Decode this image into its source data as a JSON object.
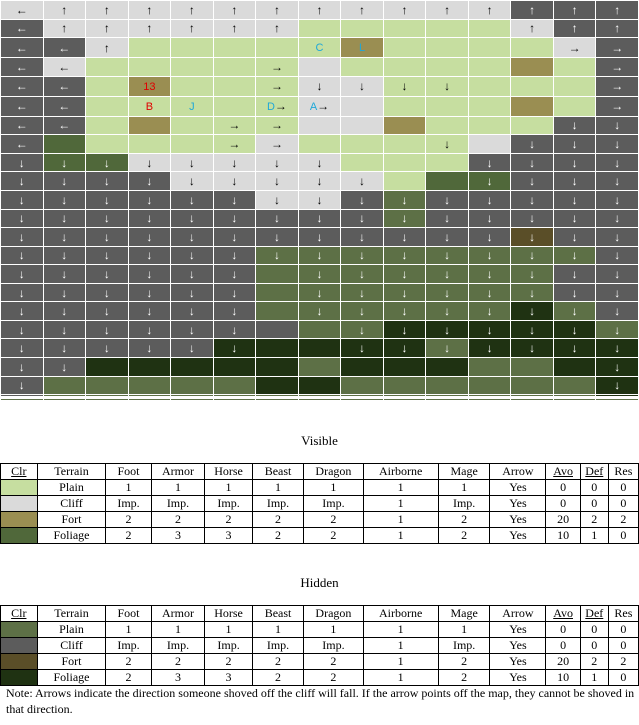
{
  "palette": {
    "P": "#c6dea0",
    "C": "#dadada",
    "F": "#9a8e52",
    "G": "#50683a",
    "g": "#5d7046",
    "c": "#5c5c5c",
    "f": "#5a4e28",
    "d": "#1f3212"
  },
  "map": {
    "rows": [
      "CCCCCCCCCCCCccc",
      "cCCCCCCPPPPPCcc",
      "ccCPPPPPFPPPPCc",
      "cCPPPPPCPPPPFPc",
      "ccPFPPPCCPPPPPc",
      "ccPPPPPCCPPPFPc",
      "ccPFPPPCCFPPPcc",
      "cGPPPPCPPPPCccc",
      "cGGCCCCCPPPcccc",
      "ccccCCCCCPGGccc",
      "ccccccCCcgccccc",
      "cccccccccgccccc",
      "ccccccccccccfcc",
      "ccccccggggggggc",
      "ccccccgggggggcc",
      "ccccccgggggggcc",
      "ccccccggggggdgc",
      "cccccccggdddddg",
      "cccccdddddgdddd",
      "ccdddddgdddggdd",
      "cgggggddggggggd",
      "cgggggggggggggd",
      "ggggggggggggdgg",
      "gdgggggdggggggg",
      "ggggggggggggggg"
    ],
    "arrows": [
      [
        "←",
        "↑",
        "↑",
        "↑",
        "↑",
        "↑",
        "↑",
        "↑",
        "↑",
        "↑",
        "↑",
        "↑",
        "↑",
        "↑",
        "↑"
      ],
      [
        "←",
        "↑",
        "↑",
        "↑",
        "↑",
        "↑",
        "↑",
        "",
        "",
        "",
        "",
        "",
        "↑",
        "↑",
        "↑"
      ],
      [
        "←",
        "←",
        "↑",
        "",
        "",
        "",
        "",
        "",
        "",
        "",
        "",
        "",
        "",
        "→",
        "→"
      ],
      [
        "←",
        "←",
        "",
        "",
        "",
        "",
        "→",
        "",
        "",
        "",
        "",
        "",
        "",
        "",
        "→"
      ],
      [
        "←",
        "←",
        "",
        "",
        "",
        "",
        "→",
        "↓",
        "↓",
        "↓",
        "↓",
        "",
        "",
        "",
        "→"
      ],
      [
        "←",
        "←",
        "",
        "",
        "",
        "",
        "→",
        "→",
        "",
        "",
        "",
        "",
        "",
        "",
        "→"
      ],
      [
        "←",
        "←",
        "",
        "",
        "",
        "→",
        "→",
        "",
        "",
        "",
        "",
        "",
        "",
        "↓",
        "↓"
      ],
      [
        "←",
        "",
        "",
        "",
        "",
        "→",
        "→",
        "",
        "",
        "",
        "↓",
        "",
        "↓",
        "↓",
        "↓"
      ],
      [
        "↓",
        "↓",
        "↓",
        "↓",
        "↓",
        "↓",
        "↓",
        "↓",
        "",
        "",
        "",
        "↓",
        "↓",
        "↓",
        "↓"
      ],
      [
        "↓",
        "↓",
        "↓",
        "↓",
        "↓",
        "↓",
        "↓",
        "↓",
        "↓",
        "",
        "",
        "↓",
        "↓",
        "↓",
        "↓"
      ],
      [
        "↓",
        "↓",
        "↓",
        "↓",
        "↓",
        "↓",
        "↓",
        "↓",
        "↓",
        "↓",
        "↓",
        "↓",
        "↓",
        "↓",
        "↓"
      ],
      [
        "↓",
        "↓",
        "↓",
        "↓",
        "↓",
        "↓",
        "↓",
        "↓",
        "↓",
        "↓",
        "↓",
        "↓",
        "↓",
        "↓",
        "↓"
      ],
      [
        "↓",
        "↓",
        "↓",
        "↓",
        "↓",
        "↓",
        "↓",
        "↓",
        "↓",
        "↓",
        "↓",
        "↓",
        "↓",
        "↓",
        "↓"
      ],
      [
        "↓",
        "↓",
        "↓",
        "↓",
        "↓",
        "↓",
        "↓",
        "↓",
        "↓",
        "↓",
        "↓",
        "↓",
        "↓",
        "↓",
        "↓"
      ],
      [
        "↓",
        "↓",
        "↓",
        "↓",
        "↓",
        "↓",
        "",
        "↓",
        "↓",
        "↓",
        "↓",
        "↓",
        "↓",
        "↓",
        "↓"
      ],
      [
        "↓",
        "↓",
        "↓",
        "↓",
        "↓",
        "↓",
        "",
        "↓",
        "↓",
        "↓",
        "↓",
        "↓",
        "↓",
        "↓",
        "↓"
      ],
      [
        "↓",
        "↓",
        "↓",
        "↓",
        "↓",
        "↓",
        "",
        "↓",
        "↓",
        "↓",
        "↓",
        "↓",
        "↓",
        "↓",
        "↓"
      ],
      [
        "↓",
        "↓",
        "↓",
        "↓",
        "↓",
        "↓",
        "",
        "",
        "↓",
        "↓",
        "↓",
        "↓",
        "↓",
        "↓",
        "↓"
      ],
      [
        "↓",
        "↓",
        "↓",
        "↓",
        "↓",
        "↓",
        "",
        "",
        "↓",
        "↓",
        "↓",
        "↓",
        "↓",
        "↓",
        "↓"
      ],
      [
        "↓",
        "↓",
        "",
        "",
        "",
        "",
        "",
        "",
        "",
        "",
        "",
        "",
        "",
        "",
        "↓"
      ],
      [
        "↓",
        "",
        "",
        "",
        "",
        "",
        "",
        "",
        "",
        "",
        "",
        "",
        "",
        "",
        "↓"
      ],
      [
        "",
        "",
        "",
        "",
        "",
        "",
        "",
        "",
        "",
        "",
        "",
        "",
        "",
        "",
        ""
      ],
      [
        "",
        "",
        "",
        "",
        "",
        "",
        "",
        "",
        "",
        "",
        "",
        "",
        "",
        "",
        ""
      ],
      [
        "",
        "",
        "",
        "",
        "",
        "",
        "",
        "",
        "",
        "",
        "",
        "",
        "",
        "",
        ""
      ],
      [
        "",
        "",
        "",
        "",
        "",
        "",
        "",
        "",
        "",
        "",
        "",
        "",
        "",
        "",
        ""
      ]
    ],
    "unit_labels": [
      {
        "row": 2,
        "col": 7,
        "text": "C",
        "color": "cyan"
      },
      {
        "row": 2,
        "col": 8,
        "text": "L",
        "color": "cyan"
      },
      {
        "row": 4,
        "col": 3,
        "text": "13",
        "color": "red"
      },
      {
        "row": 5,
        "col": 3,
        "text": "B",
        "color": "red"
      },
      {
        "row": 5,
        "col": 4,
        "text": "J",
        "color": "cyan"
      },
      {
        "row": 5,
        "col": 6,
        "text": "D",
        "color": "cyan"
      },
      {
        "row": 5,
        "col": 7,
        "text": "A",
        "color": "cyan"
      }
    ]
  },
  "visible": {
    "caption": "Visible",
    "headers": [
      "Clr",
      "Terrain",
      "Foot",
      "Armor",
      "Horse",
      "Beast",
      "Dragon",
      "Airborne",
      "Mage",
      "Arrow",
      "Avo",
      "Def",
      "Res"
    ],
    "rows": [
      {
        "color": "#c6dea0",
        "cells": [
          "Plain",
          "1",
          "1",
          "1",
          "1",
          "1",
          "1",
          "1",
          "Yes",
          "0",
          "0",
          "0"
        ]
      },
      {
        "color": "#dadada",
        "cells": [
          "Cliff",
          "Imp.",
          "Imp.",
          "Imp.",
          "Imp.",
          "Imp.",
          "1",
          "Imp.",
          "Yes",
          "0",
          "0",
          "0"
        ]
      },
      {
        "color": "#9a8e52",
        "cells": [
          "Fort",
          "2",
          "2",
          "2",
          "2",
          "2",
          "1",
          "2",
          "Yes",
          "20",
          "2",
          "2"
        ]
      },
      {
        "color": "#50683a",
        "cells": [
          "Foliage",
          "2",
          "3",
          "3",
          "2",
          "2",
          "1",
          "2",
          "Yes",
          "10",
          "1",
          "0"
        ]
      }
    ]
  },
  "hidden": {
    "caption": "Hidden",
    "headers": [
      "Clr",
      "Terrain",
      "Foot",
      "Armor",
      "Horse",
      "Beast",
      "Dragon",
      "Airborne",
      "Mage",
      "Arrow",
      "Avo",
      "Def",
      "Res"
    ],
    "rows": [
      {
        "color": "#5d7046",
        "cells": [
          "Plain",
          "1",
          "1",
          "1",
          "1",
          "1",
          "1",
          "1",
          "Yes",
          "0",
          "0",
          "0"
        ]
      },
      {
        "color": "#5c5c5c",
        "cells": [
          "Cliff",
          "Imp.",
          "Imp.",
          "Imp.",
          "Imp.",
          "Imp.",
          "1",
          "Imp.",
          "Yes",
          "0",
          "0",
          "0"
        ]
      },
      {
        "color": "#5a4e28",
        "cells": [
          "Fort",
          "2",
          "2",
          "2",
          "2",
          "2",
          "1",
          "2",
          "Yes",
          "20",
          "2",
          "2"
        ]
      },
      {
        "color": "#1f3212",
        "cells": [
          "Foliage",
          "2",
          "3",
          "3",
          "2",
          "2",
          "1",
          "2",
          "Yes",
          "10",
          "1",
          "0"
        ]
      }
    ]
  },
  "note": "Note: Arrows indicate the direction someone shoved off the cliff will fall. If the arrow points off the map, they cannot be shoved in that direction."
}
